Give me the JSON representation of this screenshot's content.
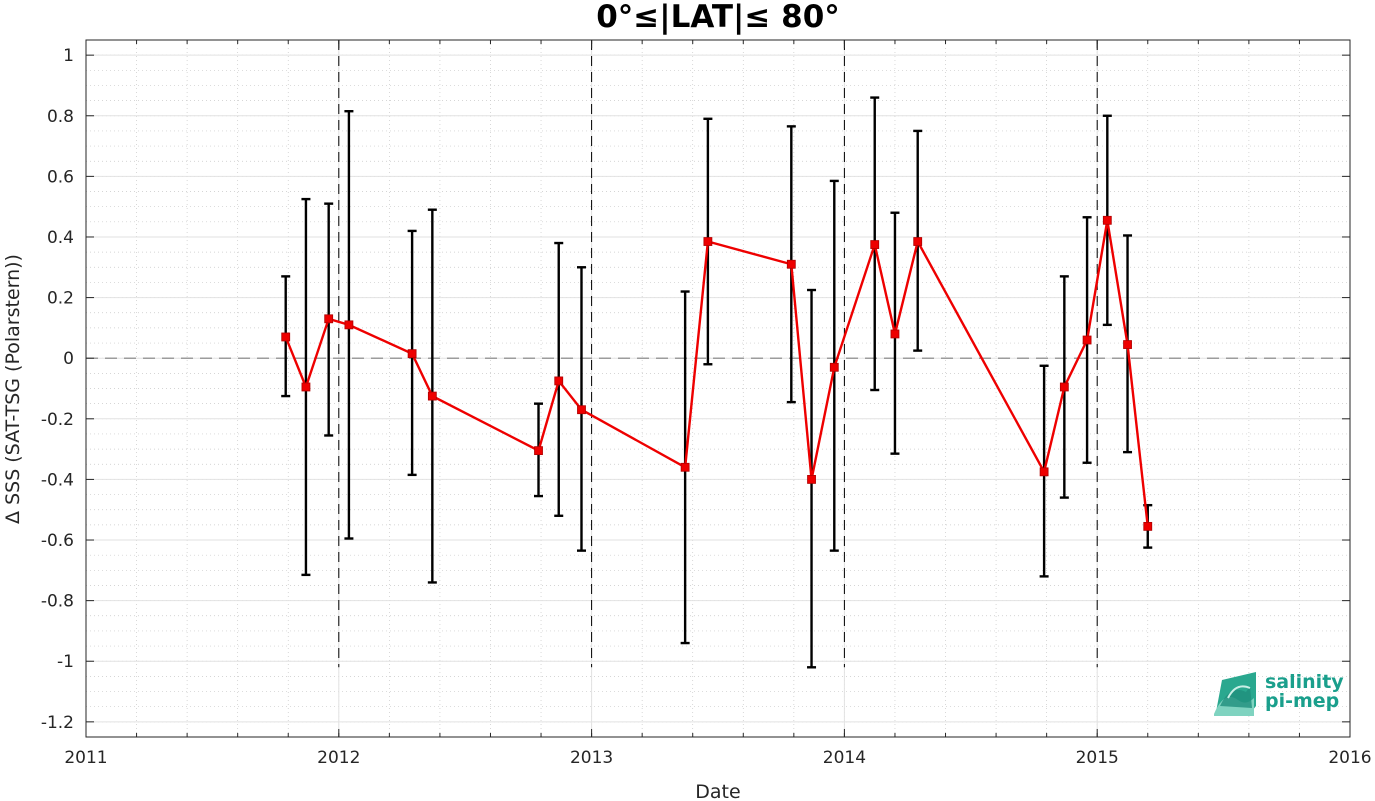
{
  "chart_data": {
    "type": "line",
    "title": "0°≤|LAT|≤ 80°",
    "xlabel": "Date",
    "ylabel": "Δ SSS (SAT-TSG (Polarstern))",
    "xlim": [
      2011,
      2016
    ],
    "ylim": [
      -1.25,
      1.05
    ],
    "x_ticks": [
      "2011",
      "2012",
      "2013",
      "2014",
      "2015",
      "2016"
    ],
    "y_ticks": [
      "1",
      "0.8",
      "0.6",
      "0.4",
      "0.2",
      "0",
      "-0.2",
      "-0.4",
      "-0.6",
      "-0.8",
      "-1",
      "-1.2"
    ],
    "grid": true,
    "minor_grid": true,
    "reference_line": 0,
    "year_separators": [
      2012,
      2013,
      2014,
      2015
    ],
    "series": [
      {
        "color": "#ee0000",
        "marker": "square",
        "points": [
          {
            "x": 2011.79,
            "y": 0.07,
            "err_low": -0.125,
            "err_high": 0.27
          },
          {
            "x": 2011.87,
            "y": -0.095,
            "err_low": -0.715,
            "err_high": 0.525
          },
          {
            "x": 2011.96,
            "y": 0.13,
            "err_low": -0.255,
            "err_high": 0.51
          },
          {
            "x": 2012.04,
            "y": 0.11,
            "err_low": -0.595,
            "err_high": 0.815
          },
          {
            "x": 2012.29,
            "y": 0.015,
            "err_low": -0.385,
            "err_high": 0.42
          },
          {
            "x": 2012.37,
            "y": -0.125,
            "err_low": -0.74,
            "err_high": 0.49
          },
          {
            "x": 2012.79,
            "y": -0.305,
            "err_low": -0.455,
            "err_high": -0.15
          },
          {
            "x": 2012.87,
            "y": -0.075,
            "err_low": -0.52,
            "err_high": 0.38
          },
          {
            "x": 2012.96,
            "y": -0.17,
            "err_low": -0.635,
            "err_high": 0.3
          },
          {
            "x": 2013.37,
            "y": -0.36,
            "err_low": -0.94,
            "err_high": 0.22
          },
          {
            "x": 2013.46,
            "y": 0.385,
            "err_low": -0.02,
            "err_high": 0.79
          },
          {
            "x": 2013.79,
            "y": 0.31,
            "err_low": -0.145,
            "err_high": 0.765
          },
          {
            "x": 2013.87,
            "y": -0.4,
            "err_low": -1.02,
            "err_high": 0.225
          },
          {
            "x": 2013.96,
            "y": -0.03,
            "err_low": -0.635,
            "err_high": 0.585
          },
          {
            "x": 2014.12,
            "y": 0.375,
            "err_low": -0.105,
            "err_high": 0.86
          },
          {
            "x": 2014.2,
            "y": 0.08,
            "err_low": -0.315,
            "err_high": 0.48
          },
          {
            "x": 2014.29,
            "y": 0.385,
            "err_low": 0.025,
            "err_high": 0.75
          },
          {
            "x": 2014.79,
            "y": -0.375,
            "err_low": -0.72,
            "err_high": -0.025
          },
          {
            "x": 2014.87,
            "y": -0.095,
            "err_low": -0.46,
            "err_high": 0.27
          },
          {
            "x": 2014.96,
            "y": 0.06,
            "err_low": -0.345,
            "err_high": 0.465
          },
          {
            "x": 2015.04,
            "y": 0.455,
            "err_low": 0.11,
            "err_high": 0.8
          },
          {
            "x": 2015.12,
            "y": 0.045,
            "err_low": -0.31,
            "err_high": 0.405
          },
          {
            "x": 2015.2,
            "y": -0.555,
            "err_low": -0.625,
            "err_high": -0.485
          }
        ]
      }
    ],
    "error_bar_color": "#000000",
    "reference_line_color": "#808080"
  },
  "logo": {
    "line1": "salinity",
    "line2": "pi-mep",
    "color": "#1a9f8c"
  }
}
